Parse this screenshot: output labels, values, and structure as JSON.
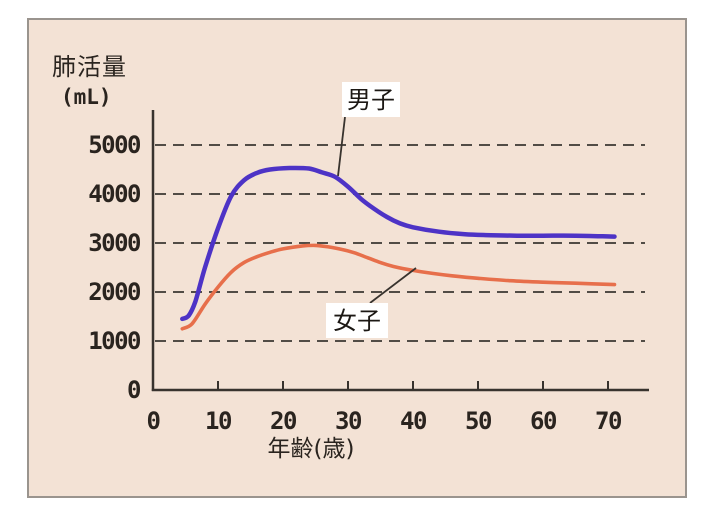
{
  "chart_data": {
    "type": "line",
    "title": "肺活量",
    "unit_label": "(mL)",
    "xlabel": "年齢(歳)",
    "xticks": [
      0,
      10,
      20,
      30,
      40,
      50,
      60,
      70
    ],
    "yticks": [
      0,
      1000,
      2000,
      3000,
      4000,
      5000
    ],
    "xlim": [
      0,
      76
    ],
    "ylim": [
      0,
      5700
    ],
    "grid": "horizontal-dashed",
    "legend_position": "callout-boxes-on-plot",
    "series": [
      {
        "name": "男子",
        "color": "#4d33c6",
        "points": [
          [
            4.5,
            1450
          ],
          [
            5.5,
            1520
          ],
          [
            6.5,
            1800
          ],
          [
            8,
            2500
          ],
          [
            10,
            3300
          ],
          [
            12,
            3950
          ],
          [
            14,
            4280
          ],
          [
            16,
            4430
          ],
          [
            18,
            4500
          ],
          [
            21,
            4530
          ],
          [
            24,
            4520
          ],
          [
            26,
            4440
          ],
          [
            28,
            4350
          ],
          [
            30,
            4150
          ],
          [
            32,
            3900
          ],
          [
            34,
            3700
          ],
          [
            36,
            3530
          ],
          [
            38,
            3400
          ],
          [
            40,
            3320
          ],
          [
            44,
            3230
          ],
          [
            48,
            3180
          ],
          [
            52,
            3160
          ],
          [
            56,
            3150
          ],
          [
            60,
            3150
          ],
          [
            65,
            3150
          ],
          [
            71,
            3130
          ]
        ]
      },
      {
        "name": "女子",
        "color": "#e76f4b",
        "points": [
          [
            4.5,
            1250
          ],
          [
            6,
            1350
          ],
          [
            8,
            1750
          ],
          [
            10,
            2100
          ],
          [
            12,
            2400
          ],
          [
            14,
            2600
          ],
          [
            16,
            2720
          ],
          [
            18,
            2810
          ],
          [
            20,
            2880
          ],
          [
            23,
            2940
          ],
          [
            25,
            2950
          ],
          [
            27,
            2920
          ],
          [
            29,
            2870
          ],
          [
            31,
            2800
          ],
          [
            33,
            2700
          ],
          [
            35,
            2600
          ],
          [
            37,
            2520
          ],
          [
            40,
            2440
          ],
          [
            43,
            2380
          ],
          [
            46,
            2330
          ],
          [
            50,
            2280
          ],
          [
            55,
            2230
          ],
          [
            60,
            2200
          ],
          [
            65,
            2180
          ],
          [
            71,
            2150
          ]
        ]
      }
    ],
    "colors": {
      "background": "#f3e2d5",
      "card_border": "#9a948e",
      "axis": "#38332e",
      "grid": "#514c46",
      "text": "#2a241f",
      "callout_box_bg": "#ffffff"
    }
  }
}
